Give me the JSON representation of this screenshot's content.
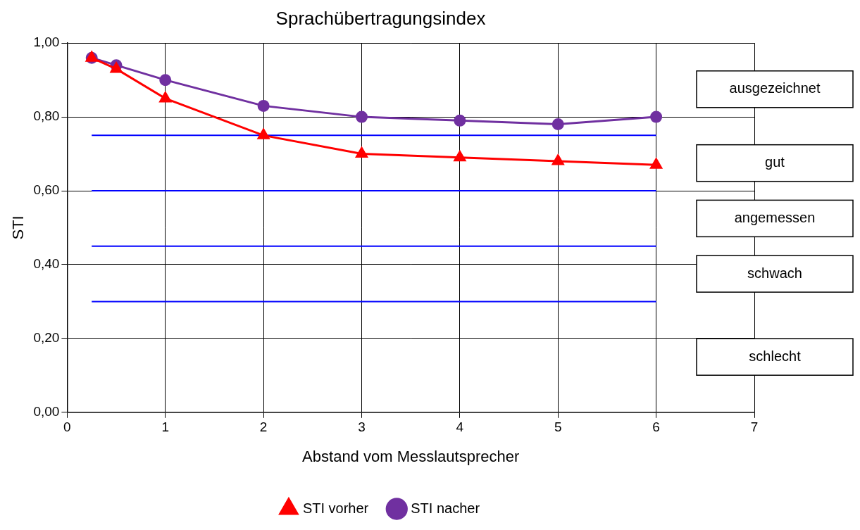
{
  "chart_data": {
    "type": "line",
    "title": "Sprachübertragungsindex",
    "x_label": "Abstand vom Messlautsprecher",
    "y_label": "STI",
    "x": [
      0.25,
      0.5,
      1,
      2,
      3,
      4,
      5,
      6
    ],
    "series": [
      {
        "name": "STI vorher",
        "color": "#ff0000",
        "marker": "triangle",
        "values": [
          0.96,
          0.93,
          0.85,
          0.75,
          0.7,
          0.69,
          0.68,
          0.67
        ]
      },
      {
        "name": "STI nacher",
        "color": "#7030a0",
        "marker": "circle",
        "values": [
          0.96,
          0.94,
          0.9,
          0.83,
          0.8,
          0.79,
          0.78,
          0.8
        ]
      }
    ],
    "xlim": [
      0,
      7
    ],
    "xticks": [
      0,
      1,
      2,
      3,
      4,
      5,
      6,
      7
    ],
    "ylim": [
      0,
      1
    ],
    "yticks": [
      {
        "value": 0,
        "label": "0,00"
      },
      {
        "value": 0.2,
        "label": "0,20"
      },
      {
        "value": 0.4,
        "label": "0,40"
      },
      {
        "value": 0.6,
        "label": "0,60"
      },
      {
        "value": 0.8,
        "label": "0,80"
      },
      {
        "value": 1,
        "label": "1,00"
      }
    ],
    "grid": true,
    "legend": "bottom",
    "bands": [
      {
        "label": "ausgezeichnet",
        "from": 0.75,
        "to": 1
      },
      {
        "label": "gut",
        "from": 0.6,
        "to": 0.75
      },
      {
        "label": "angemessen",
        "from": 0.45,
        "to": 0.6
      },
      {
        "label": "schwach",
        "from": 0.3,
        "to": 0.45
      },
      {
        "label": "schlecht",
        "from": 0,
        "to": 0.3
      }
    ],
    "band_line_color": "#0000ff",
    "band_line_x": [
      0.25,
      6
    ]
  }
}
